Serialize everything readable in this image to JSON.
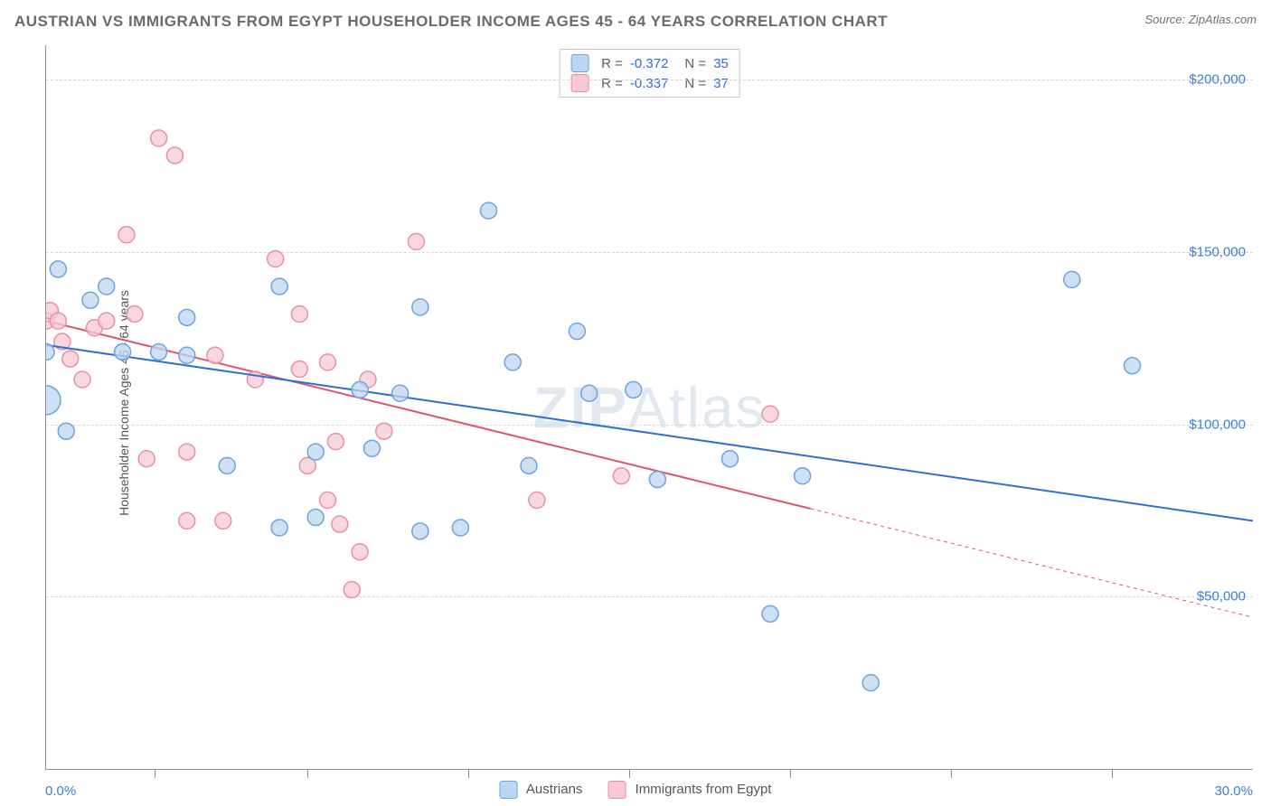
{
  "header": {
    "title": "AUSTRIAN VS IMMIGRANTS FROM EGYPT HOUSEHOLDER INCOME AGES 45 - 64 YEARS CORRELATION CHART",
    "source": "Source: ZipAtlas.com"
  },
  "watermark": {
    "zip": "ZIP",
    "atlas": "Atlas"
  },
  "chart": {
    "type": "scatter",
    "ylabel": "Householder Income Ages 45 - 64 years",
    "xlim": [
      0,
      30
    ],
    "ylim": [
      0,
      210000
    ],
    "x_tick_positions": [
      0,
      2.7,
      6.5,
      10.5,
      14.5,
      18.5,
      22.5,
      26.5,
      30
    ],
    "y_ticks": [
      50000,
      100000,
      150000,
      200000
    ],
    "y_tick_labels": [
      "$50,000",
      "$100,000",
      "$150,000",
      "$200,000"
    ],
    "x_min_label": "0.0%",
    "x_max_label": "30.0%",
    "grid_color": "#d8d8d8",
    "background_color": "#ffffff",
    "axis_color": "#909090",
    "tick_label_color": "#3b7dd8",
    "marker_radius": 9,
    "marker_stroke_width": 1.5,
    "trend_line_width": 2,
    "series": {
      "austrians": {
        "label": "Austrians",
        "fill": "#bcd5f0",
        "stroke": "#6da3e0",
        "line_color": "#2f6fd0",
        "R": "-0.372",
        "N": "35",
        "trend": {
          "x1": 0,
          "y1": 123000,
          "x2": 30,
          "y2": 72000,
          "solid_until": 30
        },
        "points": [
          [
            0.0,
            107000,
            16
          ],
          [
            0.0,
            121000,
            9
          ],
          [
            0.3,
            145000,
            9
          ],
          [
            0.5,
            98000,
            9
          ],
          [
            1.1,
            136000,
            9
          ],
          [
            1.5,
            140000,
            9
          ],
          [
            1.9,
            121000,
            9
          ],
          [
            2.8,
            121000,
            9
          ],
          [
            3.5,
            131000,
            9
          ],
          [
            3.5,
            120000,
            9
          ],
          [
            4.5,
            88000,
            9
          ],
          [
            5.8,
            140000,
            9
          ],
          [
            5.8,
            70000,
            9
          ],
          [
            6.7,
            92000,
            9
          ],
          [
            6.7,
            73000,
            9
          ],
          [
            7.8,
            110000,
            9
          ],
          [
            8.1,
            93000,
            9
          ],
          [
            8.8,
            109000,
            9
          ],
          [
            9.3,
            69000,
            9
          ],
          [
            9.3,
            134000,
            9
          ],
          [
            10.3,
            70000,
            9
          ],
          [
            11.0,
            162000,
            9
          ],
          [
            11.6,
            118000,
            9
          ],
          [
            12.0,
            88000,
            9
          ],
          [
            13.2,
            127000,
            9
          ],
          [
            13.5,
            109000,
            9
          ],
          [
            14.6,
            110000,
            9
          ],
          [
            15.2,
            84000,
            9
          ],
          [
            17.0,
            90000,
            9
          ],
          [
            18.0,
            45000,
            9
          ],
          [
            18.8,
            85000,
            9
          ],
          [
            20.5,
            25000,
            9
          ],
          [
            25.5,
            142000,
            9
          ],
          [
            27.0,
            117000,
            9
          ]
        ]
      },
      "egypt": {
        "label": "Immigrants from Egypt",
        "fill": "#f6c9d3",
        "stroke": "#e98fa6",
        "line_color": "#e1536f",
        "R": "-0.337",
        "N": "37",
        "trend": {
          "x1": 0,
          "y1": 130000,
          "x2": 30,
          "y2": 44000,
          "solid_until": 19
        },
        "points": [
          [
            0.0,
            130000,
            9
          ],
          [
            0.1,
            133000,
            9
          ],
          [
            0.3,
            130000,
            9
          ],
          [
            0.4,
            124000,
            9
          ],
          [
            0.6,
            119000,
            9
          ],
          [
            0.9,
            113000,
            9
          ],
          [
            1.2,
            128000,
            9
          ],
          [
            1.5,
            130000,
            9
          ],
          [
            2.0,
            155000,
            9
          ],
          [
            2.2,
            132000,
            9
          ],
          [
            2.5,
            90000,
            9
          ],
          [
            2.8,
            183000,
            9
          ],
          [
            3.2,
            178000,
            9
          ],
          [
            3.5,
            92000,
            9
          ],
          [
            3.5,
            72000,
            9
          ],
          [
            4.2,
            120000,
            9
          ],
          [
            4.4,
            72000,
            9
          ],
          [
            5.2,
            113000,
            9
          ],
          [
            5.7,
            148000,
            9
          ],
          [
            6.3,
            132000,
            9
          ],
          [
            6.3,
            116000,
            9
          ],
          [
            6.5,
            88000,
            9
          ],
          [
            7.0,
            118000,
            9
          ],
          [
            7.0,
            78000,
            9
          ],
          [
            7.2,
            95000,
            9
          ],
          [
            7.3,
            71000,
            9
          ],
          [
            7.6,
            52000,
            9
          ],
          [
            7.8,
            63000,
            9
          ],
          [
            8.0,
            113000,
            9
          ],
          [
            8.4,
            98000,
            9
          ],
          [
            9.2,
            153000,
            9
          ],
          [
            12.2,
            78000,
            9
          ],
          [
            14.3,
            85000,
            9
          ],
          [
            18.0,
            103000,
            9
          ]
        ]
      }
    },
    "legend_top": {
      "r_label": "R =",
      "n_label": "N ="
    },
    "legend_bottom": {}
  }
}
